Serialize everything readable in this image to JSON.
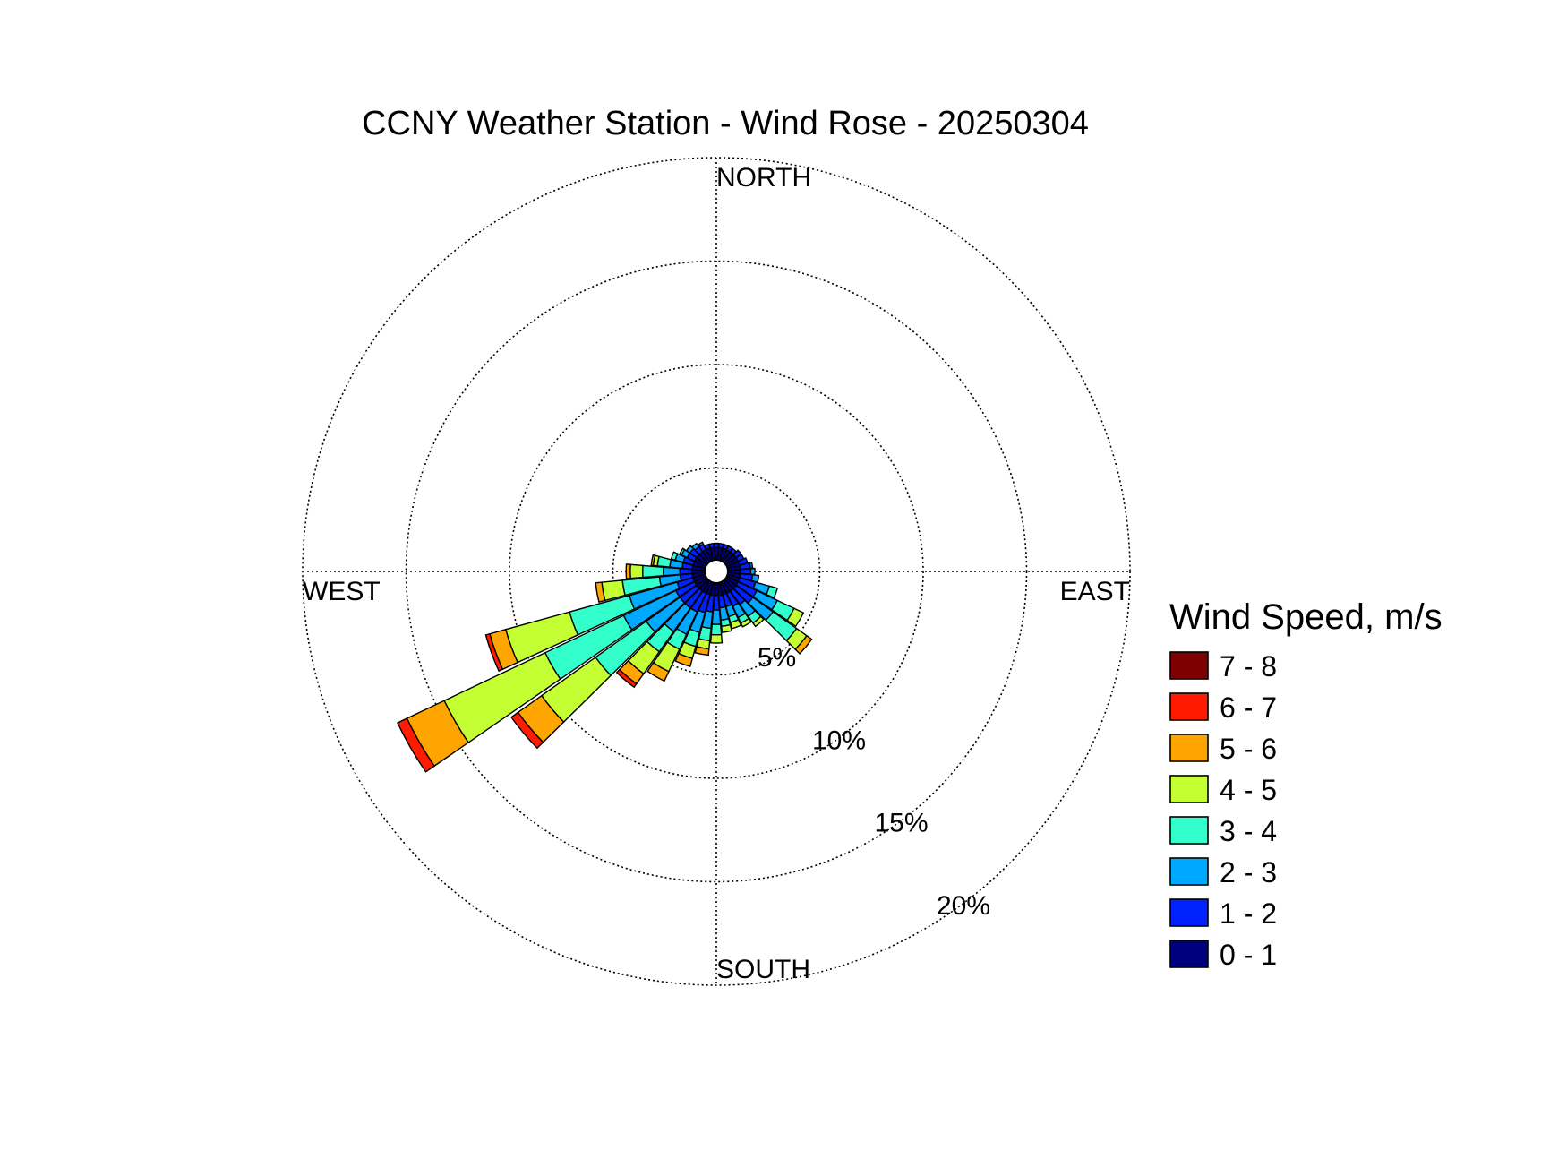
{
  "chart_data": {
    "type": "windrose",
    "title": "CCNY Weather Station - Wind Rose - 20250304",
    "directions": {
      "north": "NORTH",
      "south": "SOUTH",
      "east": "EAST",
      "west": "WEST"
    },
    "rings": [
      {
        "value": 5,
        "label": "5%"
      },
      {
        "value": 10,
        "label": "10%"
      },
      {
        "value": 15,
        "label": "15%"
      },
      {
        "value": 20,
        "label": "20%"
      }
    ],
    "rmax": 20,
    "legend_title": "Wind Speed, m/s",
    "bins": [
      {
        "label": "0 - 1",
        "color": "#00007f"
      },
      {
        "label": "1 - 2",
        "color": "#0022ff"
      },
      {
        "label": "2 - 3",
        "color": "#00a8ff"
      },
      {
        "label": "3 - 4",
        "color": "#33ffcc"
      },
      {
        "label": "4 - 5",
        "color": "#c4ff33"
      },
      {
        "label": "5 - 6",
        "color": "#ffa500"
      },
      {
        "label": "6 - 7",
        "color": "#ff1a00"
      },
      {
        "label": "7 - 8",
        "color": "#7f0000"
      }
    ],
    "sector_width_deg": 10,
    "series": [
      {
        "direction": 0,
        "values": [
          0.6,
          0.2,
          0,
          0,
          0,
          0,
          0,
          0
        ]
      },
      {
        "direction": 10,
        "values": [
          0.6,
          0.2,
          0,
          0,
          0,
          0,
          0,
          0
        ]
      },
      {
        "direction": 20,
        "values": [
          0.6,
          0.2,
          0,
          0,
          0,
          0,
          0,
          0
        ]
      },
      {
        "direction": 30,
        "values": [
          0.6,
          0.2,
          0,
          0,
          0,
          0,
          0,
          0
        ]
      },
      {
        "direction": 40,
        "values": [
          0.6,
          0.2,
          0,
          0,
          0,
          0,
          0,
          0
        ]
      },
      {
        "direction": 50,
        "values": [
          0.6,
          0.3,
          0,
          0,
          0,
          0,
          0,
          0
        ]
      },
      {
        "direction": 60,
        "values": [
          0.6,
          0.3,
          0,
          0,
          0,
          0,
          0,
          0
        ]
      },
      {
        "direction": 70,
        "values": [
          0.6,
          0.4,
          0,
          0,
          0,
          0,
          0,
          0
        ]
      },
      {
        "direction": 80,
        "values": [
          0.6,
          0.5,
          0.1,
          0,
          0,
          0,
          0,
          0
        ]
      },
      {
        "direction": 90,
        "values": [
          0.6,
          0.5,
          0.2,
          0,
          0,
          0,
          0,
          0
        ]
      },
      {
        "direction": 100,
        "values": [
          0.6,
          0.6,
          0.3,
          0,
          0,
          0,
          0,
          0
        ]
      },
      {
        "direction": 110,
        "values": [
          0.6,
          0.8,
          0.7,
          0.4,
          0,
          0,
          0,
          0
        ]
      },
      {
        "direction": 120,
        "values": [
          0.6,
          1.0,
          1.1,
          0.9,
          0.5,
          0,
          0,
          0
        ]
      },
      {
        "direction": 130,
        "values": [
          0.6,
          1.0,
          1.2,
          1.4,
          0.6,
          0.3,
          0,
          0
        ]
      },
      {
        "direction": 140,
        "values": [
          0.6,
          0.8,
          0.7,
          0.4,
          0.2,
          0,
          0,
          0
        ]
      },
      {
        "direction": 150,
        "values": [
          0.6,
          0.7,
          0.6,
          0.3,
          0.2,
          0,
          0,
          0
        ]
      },
      {
        "direction": 160,
        "values": [
          0.6,
          0.6,
          0.5,
          0.3,
          0.3,
          0,
          0,
          0
        ]
      },
      {
        "direction": 170,
        "values": [
          0.6,
          0.6,
          0.6,
          0.3,
          0.3,
          0,
          0,
          0
        ]
      },
      {
        "direction": 180,
        "values": [
          0.6,
          0.7,
          0.7,
          0.5,
          0.4,
          0,
          0,
          0
        ]
      },
      {
        "direction": 190,
        "values": [
          0.6,
          0.8,
          0.8,
          0.6,
          0.4,
          0.3,
          0,
          0
        ]
      },
      {
        "direction": 200,
        "values": [
          0.6,
          0.9,
          1.0,
          0.7,
          0.6,
          0.4,
          0,
          0
        ]
      },
      {
        "direction": 210,
        "values": [
          0.6,
          1.0,
          1.2,
          0.8,
          1.2,
          0.5,
          0,
          0
        ]
      },
      {
        "direction": 220,
        "values": [
          0.6,
          1.0,
          1.4,
          1.2,
          1.3,
          0.6,
          0.2,
          0
        ]
      },
      {
        "direction": 230,
        "values": [
          0.6,
          1.0,
          2.0,
          3.0,
          3.2,
          1.4,
          0.4,
          0
        ]
      },
      {
        "direction": 240,
        "values": [
          0.6,
          1.0,
          2.8,
          4.2,
          5.4,
          2.0,
          0.5,
          0
        ]
      },
      {
        "direction": 250,
        "values": [
          0.6,
          0.8,
          2.4,
          3.0,
          3.2,
          0.8,
          0.2,
          0
        ]
      },
      {
        "direction": 260,
        "values": [
          0.6,
          0.6,
          1.0,
          1.8,
          1.0,
          0.3,
          0,
          0
        ]
      },
      {
        "direction": 270,
        "values": [
          0.6,
          0.6,
          0.8,
          1.0,
          0.6,
          0.2,
          0,
          0
        ]
      },
      {
        "direction": 280,
        "values": [
          0.6,
          0.5,
          0.6,
          0.6,
          0.2,
          0.1,
          0,
          0
        ]
      },
      {
        "direction": 290,
        "values": [
          0.6,
          0.5,
          0.4,
          0.2,
          0,
          0,
          0,
          0
        ]
      },
      {
        "direction": 300,
        "values": [
          0.6,
          0.4,
          0.3,
          0.1,
          0,
          0,
          0,
          0
        ]
      },
      {
        "direction": 310,
        "values": [
          0.6,
          0.4,
          0.2,
          0,
          0,
          0,
          0,
          0
        ]
      },
      {
        "direction": 320,
        "values": [
          0.6,
          0.3,
          0.2,
          0,
          0,
          0,
          0,
          0
        ]
      },
      {
        "direction": 330,
        "values": [
          0.6,
          0.3,
          0.1,
          0,
          0,
          0,
          0,
          0
        ]
      },
      {
        "direction": 340,
        "values": [
          0.6,
          0.2,
          0,
          0,
          0,
          0,
          0,
          0
        ]
      },
      {
        "direction": 350,
        "values": [
          0.6,
          0.2,
          0,
          0,
          0,
          0,
          0,
          0
        ]
      }
    ]
  }
}
